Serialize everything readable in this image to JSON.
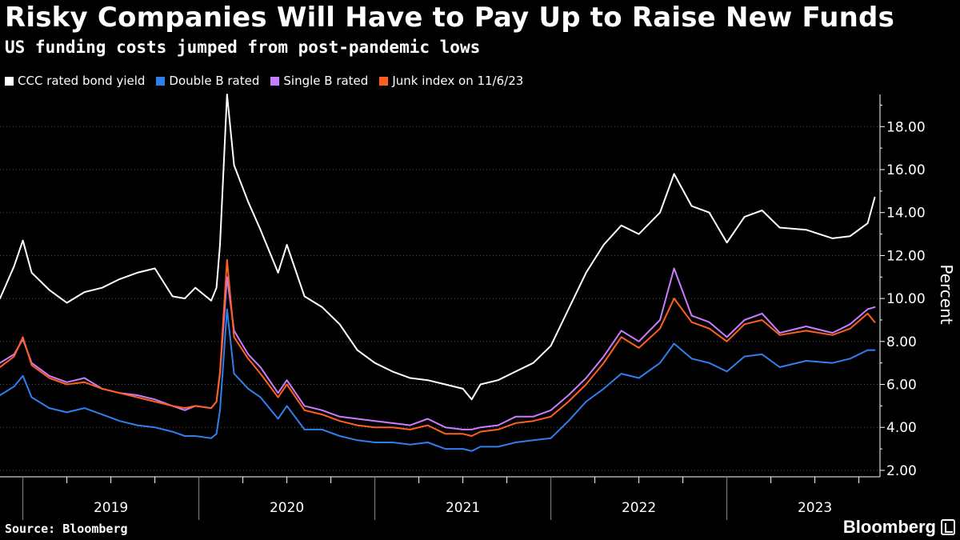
{
  "header": {
    "title": "Risky Companies Will Have to Pay Up to Raise New Funds",
    "subtitle": "US funding costs jumped from post-pandemic lows"
  },
  "footer": {
    "source": "Source: Bloomberg",
    "brand": "Bloomberg"
  },
  "colors": {
    "background": "#000000",
    "ccc": "#ffffff",
    "bb": "#2f80ed",
    "b": "#c77dff",
    "junk": "#ff5f1f"
  },
  "chart_data": {
    "type": "line",
    "title": "Risky Companies Will Have to Pay Up to Raise New Funds",
    "subtitle": "US funding costs jumped from post-pandemic lows",
    "xlabel": "",
    "ylabel": "Percent",
    "ylim": [
      1.7,
      19.5
    ],
    "xlim": [
      2018.87,
      2023.87
    ],
    "yticks": [
      2.0,
      4.0,
      6.0,
      8.0,
      10.0,
      12.0,
      14.0,
      16.0,
      18.0
    ],
    "ytick_labels": [
      "2.00",
      "4.00",
      "6.00",
      "8.00",
      "10.00",
      "12.00",
      "14.00",
      "16.00",
      "18.00"
    ],
    "year_boundaries": [
      2019,
      2020,
      2021,
      2022,
      2023
    ],
    "xtick_labels": [
      {
        "label": "2019",
        "x": 2019.5
      },
      {
        "label": "2020",
        "x": 2020.5
      },
      {
        "label": "2021",
        "x": 2021.5
      },
      {
        "label": "2022",
        "x": 2022.5
      },
      {
        "label": "2023",
        "x": 2023.5
      }
    ],
    "legend_position": "top-left",
    "series": [
      {
        "name": "CCC rated bond yield",
        "x": [
          2018.87,
          2018.95,
          2019.0,
          2019.05,
          2019.15,
          2019.25,
          2019.35,
          2019.45,
          2019.55,
          2019.65,
          2019.75,
          2019.85,
          2019.92,
          2019.98,
          2020.07,
          2020.1,
          2020.12,
          2020.16,
          2020.2,
          2020.28,
          2020.35,
          2020.45,
          2020.5,
          2020.6,
          2020.7,
          2020.8,
          2020.9,
          2021.0,
          2021.1,
          2021.2,
          2021.3,
          2021.4,
          2021.5,
          2021.55,
          2021.6,
          2021.7,
          2021.8,
          2021.9,
          2022.0,
          2022.1,
          2022.2,
          2022.3,
          2022.4,
          2022.5,
          2022.62,
          2022.7,
          2022.8,
          2022.9,
          2023.0,
          2023.1,
          2023.2,
          2023.3,
          2023.45,
          2023.6,
          2023.7,
          2023.8,
          2023.84
        ],
        "values": [
          10.0,
          11.5,
          12.7,
          11.2,
          10.4,
          9.8,
          10.3,
          10.5,
          10.9,
          11.2,
          11.4,
          10.1,
          10.0,
          10.5,
          9.9,
          10.5,
          12.5,
          19.5,
          16.2,
          14.5,
          13.2,
          11.2,
          12.5,
          10.1,
          9.6,
          8.8,
          7.6,
          7.0,
          6.6,
          6.3,
          6.2,
          6.0,
          5.8,
          5.3,
          6.0,
          6.2,
          6.6,
          7.0,
          7.8,
          9.5,
          11.2,
          12.5,
          13.4,
          13.0,
          14.0,
          15.8,
          14.3,
          14.0,
          12.6,
          13.8,
          14.1,
          13.3,
          13.2,
          12.8,
          12.9,
          13.5,
          14.7
        ]
      },
      {
        "name": "Double B rated",
        "x": [
          2018.87,
          2018.95,
          2019.0,
          2019.05,
          2019.15,
          2019.25,
          2019.35,
          2019.45,
          2019.55,
          2019.65,
          2019.75,
          2019.85,
          2019.92,
          2019.98,
          2020.07,
          2020.1,
          2020.12,
          2020.16,
          2020.2,
          2020.28,
          2020.35,
          2020.45,
          2020.5,
          2020.6,
          2020.7,
          2020.8,
          2020.9,
          2021.0,
          2021.1,
          2021.2,
          2021.3,
          2021.4,
          2021.5,
          2021.55,
          2021.6,
          2021.7,
          2021.8,
          2021.9,
          2022.0,
          2022.1,
          2022.2,
          2022.3,
          2022.4,
          2022.5,
          2022.62,
          2022.7,
          2022.8,
          2022.9,
          2023.0,
          2023.1,
          2023.2,
          2023.3,
          2023.45,
          2023.6,
          2023.7,
          2023.8,
          2023.84
        ],
        "values": [
          5.5,
          5.9,
          6.4,
          5.4,
          4.9,
          4.7,
          4.9,
          4.6,
          4.3,
          4.1,
          4.0,
          3.8,
          3.6,
          3.6,
          3.5,
          3.7,
          4.8,
          9.5,
          6.5,
          5.8,
          5.4,
          4.4,
          5.0,
          3.9,
          3.9,
          3.6,
          3.4,
          3.3,
          3.3,
          3.2,
          3.3,
          3.0,
          3.0,
          2.9,
          3.1,
          3.1,
          3.3,
          3.4,
          3.5,
          4.3,
          5.2,
          5.8,
          6.5,
          6.3,
          7.0,
          7.9,
          7.2,
          7.0,
          6.6,
          7.3,
          7.4,
          6.8,
          7.1,
          7.0,
          7.2,
          7.6,
          7.6
        ]
      },
      {
        "name": "Single B rated",
        "x": [
          2018.87,
          2018.95,
          2019.0,
          2019.05,
          2019.15,
          2019.25,
          2019.35,
          2019.45,
          2019.55,
          2019.65,
          2019.75,
          2019.85,
          2019.92,
          2019.98,
          2020.07,
          2020.1,
          2020.12,
          2020.16,
          2020.2,
          2020.28,
          2020.35,
          2020.45,
          2020.5,
          2020.6,
          2020.7,
          2020.8,
          2020.9,
          2021.0,
          2021.1,
          2021.2,
          2021.3,
          2021.4,
          2021.5,
          2021.55,
          2021.6,
          2021.7,
          2021.8,
          2021.9,
          2022.0,
          2022.1,
          2022.2,
          2022.3,
          2022.4,
          2022.5,
          2022.62,
          2022.7,
          2022.8,
          2022.9,
          2023.0,
          2023.1,
          2023.2,
          2023.3,
          2023.45,
          2023.6,
          2023.7,
          2023.8,
          2023.84
        ],
        "values": [
          7.0,
          7.4,
          8.1,
          7.0,
          6.4,
          6.1,
          6.3,
          5.8,
          5.6,
          5.5,
          5.3,
          5.0,
          4.8,
          5.0,
          4.9,
          5.2,
          6.5,
          11.0,
          8.5,
          7.4,
          6.8,
          5.6,
          6.2,
          5.0,
          4.8,
          4.5,
          4.4,
          4.3,
          4.2,
          4.1,
          4.4,
          4.0,
          3.9,
          3.9,
          4.0,
          4.1,
          4.5,
          4.5,
          4.8,
          5.5,
          6.3,
          7.3,
          8.5,
          8.0,
          9.0,
          11.4,
          9.2,
          8.9,
          8.2,
          9.0,
          9.3,
          8.4,
          8.7,
          8.4,
          8.8,
          9.5,
          9.6
        ]
      },
      {
        "name": "Junk index on 11/6/23",
        "x": [
          2018.87,
          2018.95,
          2019.0,
          2019.05,
          2019.15,
          2019.25,
          2019.35,
          2019.45,
          2019.55,
          2019.65,
          2019.75,
          2019.85,
          2019.92,
          2019.98,
          2020.07,
          2020.1,
          2020.12,
          2020.16,
          2020.2,
          2020.28,
          2020.35,
          2020.45,
          2020.5,
          2020.6,
          2020.7,
          2020.8,
          2020.9,
          2021.0,
          2021.1,
          2021.2,
          2021.3,
          2021.4,
          2021.5,
          2021.55,
          2021.6,
          2021.7,
          2021.8,
          2021.9,
          2022.0,
          2022.1,
          2022.2,
          2022.3,
          2022.4,
          2022.5,
          2022.62,
          2022.7,
          2022.8,
          2022.9,
          2023.0,
          2023.1,
          2023.2,
          2023.3,
          2023.45,
          2023.6,
          2023.7,
          2023.8,
          2023.84
        ],
        "values": [
          6.8,
          7.3,
          8.2,
          6.9,
          6.3,
          6.0,
          6.1,
          5.8,
          5.6,
          5.4,
          5.2,
          5.0,
          4.9,
          5.0,
          4.9,
          5.2,
          6.6,
          11.8,
          8.2,
          7.2,
          6.5,
          5.4,
          6.0,
          4.8,
          4.6,
          4.3,
          4.1,
          4.0,
          4.0,
          3.9,
          4.1,
          3.7,
          3.7,
          3.6,
          3.8,
          3.9,
          4.2,
          4.3,
          4.5,
          5.2,
          6.0,
          7.0,
          8.2,
          7.7,
          8.6,
          10.0,
          8.9,
          8.6,
          8.0,
          8.8,
          9.0,
          8.3,
          8.5,
          8.3,
          8.6,
          9.3,
          8.9
        ]
      }
    ]
  }
}
